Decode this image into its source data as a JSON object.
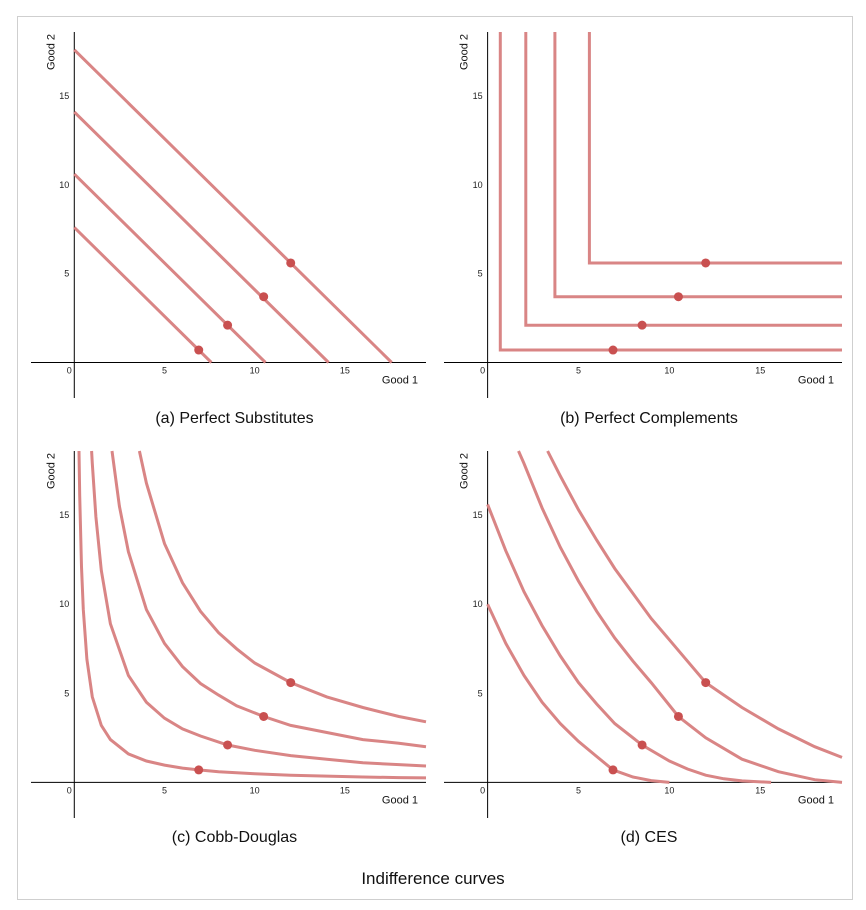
{
  "figure_title": "Indifference curves",
  "colors": {
    "curve": "#d98585",
    "point": "#c95050",
    "axis": "#000000"
  },
  "chart_data": [
    {
      "type": "line",
      "id": "a",
      "caption": "(a)  Perfect Substitutes",
      "xlabel": "Good 1",
      "ylabel": "Good 2",
      "xlim": [
        -2.4,
        19.5
      ],
      "ylim": [
        -2,
        18.6
      ],
      "xticks": [
        0,
        5,
        10,
        15
      ],
      "yticks": [
        5,
        10,
        15
      ],
      "tick_labels_x": [
        "0",
        "5",
        "10",
        "15"
      ],
      "tick_labels_y": [
        "5",
        "10",
        "15"
      ],
      "series": [
        {
          "points": [
            [
              0,
              7.6
            ],
            [
              7.6,
              0
            ]
          ]
        },
        {
          "points": [
            [
              0,
              10.6
            ],
            [
              10.6,
              0
            ]
          ]
        },
        {
          "points": [
            [
              0,
              14.1
            ],
            [
              14.1,
              0
            ]
          ]
        },
        {
          "points": [
            [
              0,
              17.6
            ],
            [
              17.6,
              0
            ]
          ]
        }
      ],
      "markers": [
        [
          6.9,
          0.7
        ],
        [
          8.5,
          2.1
        ],
        [
          10.5,
          3.7
        ],
        [
          12.0,
          5.6
        ]
      ]
    },
    {
      "type": "line",
      "id": "b",
      "caption": "(b) Perfect Complements",
      "xlabel": "Good 1",
      "ylabel": "Good 2",
      "xlim": [
        -2.4,
        19.5
      ],
      "ylim": [
        -2,
        18.6
      ],
      "xticks": [
        0,
        5,
        10,
        15
      ],
      "yticks": [
        5,
        10,
        15
      ],
      "tick_labels_x": [
        "0",
        "5",
        "10",
        "15"
      ],
      "tick_labels_y": [
        "5",
        "10",
        "15"
      ],
      "series": [
        {
          "points": [
            [
              0.7,
              18.6
            ],
            [
              0.7,
              0.7
            ],
            [
              19.5,
              0.7
            ]
          ]
        },
        {
          "points": [
            [
              2.1,
              18.6
            ],
            [
              2.1,
              2.1
            ],
            [
              19.5,
              2.1
            ]
          ]
        },
        {
          "points": [
            [
              3.7,
              18.6
            ],
            [
              3.7,
              3.7
            ],
            [
              19.5,
              3.7
            ]
          ]
        },
        {
          "points": [
            [
              5.6,
              18.6
            ],
            [
              5.6,
              5.6
            ],
            [
              19.5,
              5.6
            ]
          ]
        }
      ],
      "markers": [
        [
          6.9,
          0.7
        ],
        [
          8.5,
          2.1
        ],
        [
          10.5,
          3.7
        ],
        [
          12.0,
          5.6
        ]
      ]
    },
    {
      "type": "line",
      "id": "c",
      "caption": "(c) Cobb-Douglas",
      "xlabel": "Good 1",
      "ylabel": "Good 2",
      "xlim": [
        -2.4,
        19.5
      ],
      "ylim": [
        -2,
        18.6
      ],
      "xticks": [
        0,
        5,
        10,
        15
      ],
      "yticks": [
        5,
        10,
        15
      ],
      "tick_labels_x": [
        "0",
        "5",
        "10",
        "15"
      ],
      "tick_labels_y": [
        "5",
        "10",
        "15"
      ],
      "series": [
        {
          "points": [
            [
              0.26,
              18.6
            ],
            [
              0.3,
              16.1
            ],
            [
              0.4,
              12.1
            ],
            [
              0.5,
              9.7
            ],
            [
              0.7,
              6.9
            ],
            [
              1.0,
              4.8
            ],
            [
              1.5,
              3.2
            ],
            [
              2,
              2.4
            ],
            [
              3,
              1.6
            ],
            [
              4,
              1.2
            ],
            [
              5,
              0.97
            ],
            [
              6,
              0.8
            ],
            [
              6.9,
              0.7
            ],
            [
              8,
              0.6
            ],
            [
              10,
              0.48
            ],
            [
              12,
              0.4
            ],
            [
              14,
              0.35
            ],
            [
              16,
              0.3
            ],
            [
              18,
              0.27
            ],
            [
              19.5,
              0.25
            ]
          ]
        },
        {
          "points": [
            [
              0.96,
              18.6
            ],
            [
              1.0,
              17.9
            ],
            [
              1.2,
              14.9
            ],
            [
              1.5,
              11.9
            ],
            [
              2,
              8.9
            ],
            [
              3,
              6.0
            ],
            [
              4,
              4.5
            ],
            [
              5,
              3.6
            ],
            [
              6,
              3.0
            ],
            [
              7,
              2.6
            ],
            [
              8.5,
              2.1
            ],
            [
              10,
              1.8
            ],
            [
              12,
              1.5
            ],
            [
              14,
              1.3
            ],
            [
              16,
              1.1
            ],
            [
              18,
              1.0
            ],
            [
              19.5,
              0.92
            ]
          ]
        },
        {
          "points": [
            [
              2.09,
              18.6
            ],
            [
              2.5,
              15.5
            ],
            [
              3,
              12.95
            ],
            [
              4,
              9.7
            ],
            [
              5,
              7.8
            ],
            [
              6,
              6.5
            ],
            [
              7,
              5.55
            ],
            [
              8,
              4.9
            ],
            [
              9,
              4.3
            ],
            [
              10.5,
              3.7
            ],
            [
              12,
              3.2
            ],
            [
              14,
              2.8
            ],
            [
              16,
              2.4
            ],
            [
              18,
              2.2
            ],
            [
              19.5,
              2.0
            ]
          ]
        },
        {
          "points": [
            [
              3.61,
              18.6
            ],
            [
              4,
              16.8
            ],
            [
              5,
              13.4
            ],
            [
              6,
              11.2
            ],
            [
              7,
              9.6
            ],
            [
              8,
              8.4
            ],
            [
              9,
              7.5
            ],
            [
              10,
              6.7
            ],
            [
              12,
              5.6
            ],
            [
              14,
              4.8
            ],
            [
              16,
              4.2
            ],
            [
              18,
              3.7
            ],
            [
              19.5,
              3.4
            ]
          ]
        }
      ],
      "markers": [
        [
          6.9,
          0.7
        ],
        [
          8.5,
          2.1
        ],
        [
          10.5,
          3.7
        ],
        [
          12.0,
          5.6
        ]
      ]
    },
    {
      "type": "line",
      "id": "d",
      "caption": "(d) CES",
      "xlabel": "Good 1",
      "ylabel": "Good 2",
      "xlim": [
        -2.4,
        19.5
      ],
      "ylim": [
        -2,
        18.6
      ],
      "xticks": [
        0,
        5,
        10,
        15
      ],
      "yticks": [
        5,
        10,
        15
      ],
      "tick_labels_x": [
        "0",
        "5",
        "10",
        "15"
      ],
      "tick_labels_y": [
        "5",
        "10",
        "15"
      ],
      "series": [
        {
          "points": [
            [
              0,
              10.0
            ],
            [
              1,
              7.8
            ],
            [
              2,
              6.0
            ],
            [
              3,
              4.5
            ],
            [
              4,
              3.3
            ],
            [
              5,
              2.3
            ],
            [
              6,
              1.45
            ],
            [
              6.9,
              0.7
            ],
            [
              8,
              0.3
            ],
            [
              9,
              0.1
            ],
            [
              10,
              0
            ]
          ]
        },
        {
          "points": [
            [
              0,
              15.6
            ],
            [
              1,
              13.0
            ],
            [
              2,
              10.7
            ],
            [
              3,
              8.8
            ],
            [
              4,
              7.1
            ],
            [
              5,
              5.6
            ],
            [
              6,
              4.4
            ],
            [
              7,
              3.3
            ],
            [
              8.5,
              2.1
            ],
            [
              10,
              1.2
            ],
            [
              11,
              0.75
            ],
            [
              12,
              0.4
            ],
            [
              13,
              0.2
            ],
            [
              14,
              0.08
            ],
            [
              15.6,
              0
            ]
          ]
        },
        {
          "points": [
            [
              1.7,
              18.6
            ],
            [
              2,
              17.9
            ],
            [
              3,
              15.4
            ],
            [
              4,
              13.2
            ],
            [
              5,
              11.3
            ],
            [
              6,
              9.6
            ],
            [
              7,
              8.1
            ],
            [
              8,
              6.8
            ],
            [
              9,
              5.6
            ],
            [
              10.5,
              3.7
            ],
            [
              12,
              2.5
            ],
            [
              14,
              1.3
            ],
            [
              16,
              0.6
            ],
            [
              18,
              0.15
            ],
            [
              19.5,
              0
            ]
          ]
        },
        {
          "points": [
            [
              3.3,
              18.6
            ],
            [
              4,
              17.2
            ],
            [
              5,
              15.3
            ],
            [
              6,
              13.6
            ],
            [
              7,
              12.0
            ],
            [
              8,
              10.6
            ],
            [
              9,
              9.2
            ],
            [
              10,
              8.0
            ],
            [
              11,
              6.8
            ],
            [
              12,
              5.6
            ],
            [
              13,
              4.9
            ],
            [
              14,
              4.2
            ],
            [
              16,
              3.0
            ],
            [
              18,
              2.0
            ],
            [
              19.5,
              1.4
            ]
          ]
        }
      ],
      "markers": [
        [
          6.9,
          0.7
        ],
        [
          8.5,
          2.1
        ],
        [
          10.5,
          3.7
        ],
        [
          12.0,
          5.6
        ]
      ]
    }
  ]
}
